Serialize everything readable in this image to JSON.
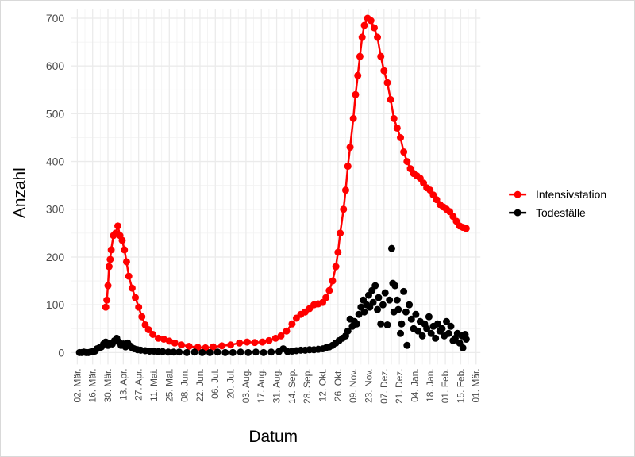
{
  "chart_data": {
    "type": "line",
    "xlabel": "Datum",
    "ylabel": "Anzahl",
    "x_range": [
      "2020-02-25",
      "2021-03-05"
    ],
    "ylim": [
      -25,
      720
    ],
    "y_ticks": [
      0,
      100,
      200,
      300,
      400,
      500,
      600,
      700
    ],
    "x_ticks": [
      {
        "date": "2020-03-02",
        "label": "02. Mär."
      },
      {
        "date": "2020-03-16",
        "label": "16. Mär."
      },
      {
        "date": "2020-03-30",
        "label": "30. Mär."
      },
      {
        "date": "2020-04-13",
        "label": "13. Apr."
      },
      {
        "date": "2020-04-27",
        "label": "27. Apr."
      },
      {
        "date": "2020-05-11",
        "label": "11. Mai."
      },
      {
        "date": "2020-05-25",
        "label": "25. Mai."
      },
      {
        "date": "2020-06-08",
        "label": "08. Jun."
      },
      {
        "date": "2020-06-22",
        "label": "22. Jun."
      },
      {
        "date": "2020-07-06",
        "label": "06. Jul."
      },
      {
        "date": "2020-07-20",
        "label": "20. Jul."
      },
      {
        "date": "2020-08-03",
        "label": "03. Aug."
      },
      {
        "date": "2020-08-17",
        "label": "17. Aug."
      },
      {
        "date": "2020-08-31",
        "label": "31. Aug."
      },
      {
        "date": "2020-09-14",
        "label": "14. Sep."
      },
      {
        "date": "2020-09-28",
        "label": "28. Sep."
      },
      {
        "date": "2020-10-12",
        "label": "12. Okt."
      },
      {
        "date": "2020-10-26",
        "label": "26. Okt."
      },
      {
        "date": "2020-11-09",
        "label": "09. Nov."
      },
      {
        "date": "2020-11-23",
        "label": "23. Nov."
      },
      {
        "date": "2020-12-07",
        "label": "07. Dez."
      },
      {
        "date": "2020-12-21",
        "label": "21. Dez."
      },
      {
        "date": "2021-01-04",
        "label": "04. Jan."
      },
      {
        "date": "2021-01-18",
        "label": "18. Jan."
      },
      {
        "date": "2021-02-01",
        "label": "01. Feb."
      },
      {
        "date": "2021-02-15",
        "label": "15. Feb."
      },
      {
        "date": "2021-03-01",
        "label": "01. Mär."
      }
    ],
    "grid": true,
    "legend_position": "right",
    "series": [
      {
        "name": "Intensivstation",
        "color": "#ff0000",
        "line": true,
        "points": [
          [
            "2020-03-28",
            95
          ],
          [
            "2020-03-29",
            110
          ],
          [
            "2020-03-30",
            140
          ],
          [
            "2020-03-31",
            180
          ],
          [
            "2020-04-01",
            195
          ],
          [
            "2020-04-02",
            215
          ],
          [
            "2020-04-04",
            245
          ],
          [
            "2020-04-06",
            250
          ],
          [
            "2020-04-08",
            265
          ],
          [
            "2020-04-10",
            245
          ],
          [
            "2020-04-12",
            235
          ],
          [
            "2020-04-14",
            215
          ],
          [
            "2020-04-16",
            190
          ],
          [
            "2020-04-18",
            160
          ],
          [
            "2020-04-21",
            135
          ],
          [
            "2020-04-24",
            115
          ],
          [
            "2020-04-27",
            95
          ],
          [
            "2020-04-30",
            75
          ],
          [
            "2020-05-03",
            58
          ],
          [
            "2020-05-06",
            48
          ],
          [
            "2020-05-10",
            38
          ],
          [
            "2020-05-15",
            30
          ],
          [
            "2020-05-20",
            28
          ],
          [
            "2020-05-25",
            24
          ],
          [
            "2020-05-30",
            20
          ],
          [
            "2020-06-05",
            16
          ],
          [
            "2020-06-12",
            13
          ],
          [
            "2020-06-20",
            11
          ],
          [
            "2020-06-27",
            10
          ],
          [
            "2020-07-04",
            12
          ],
          [
            "2020-07-12",
            14
          ],
          [
            "2020-07-20",
            16
          ],
          [
            "2020-07-28",
            20
          ],
          [
            "2020-08-04",
            22
          ],
          [
            "2020-08-11",
            21
          ],
          [
            "2020-08-18",
            22
          ],
          [
            "2020-08-24",
            25
          ],
          [
            "2020-08-30",
            30
          ],
          [
            "2020-09-04",
            35
          ],
          [
            "2020-09-09",
            45
          ],
          [
            "2020-09-14",
            60
          ],
          [
            "2020-09-18",
            72
          ],
          [
            "2020-09-22",
            80
          ],
          [
            "2020-09-26",
            85
          ],
          [
            "2020-09-30",
            92
          ],
          [
            "2020-10-04",
            100
          ],
          [
            "2020-10-08",
            102
          ],
          [
            "2020-10-12",
            105
          ],
          [
            "2020-10-15",
            115
          ],
          [
            "2020-10-18",
            130
          ],
          [
            "2020-10-21",
            150
          ],
          [
            "2020-10-24",
            180
          ],
          [
            "2020-10-26",
            210
          ],
          [
            "2020-10-28",
            250
          ],
          [
            "2020-10-31",
            300
          ],
          [
            "2020-11-02",
            340
          ],
          [
            "2020-11-04",
            390
          ],
          [
            "2020-11-06",
            430
          ],
          [
            "2020-11-09",
            490
          ],
          [
            "2020-11-11",
            540
          ],
          [
            "2020-11-13",
            580
          ],
          [
            "2020-11-15",
            620
          ],
          [
            "2020-11-17",
            660
          ],
          [
            "2020-11-19",
            685
          ],
          [
            "2020-11-22",
            700
          ],
          [
            "2020-11-25",
            695
          ],
          [
            "2020-11-28",
            680
          ],
          [
            "2020-12-01",
            660
          ],
          [
            "2020-12-04",
            620
          ],
          [
            "2020-12-07",
            590
          ],
          [
            "2020-12-10",
            565
          ],
          [
            "2020-12-13",
            530
          ],
          [
            "2020-12-16",
            490
          ],
          [
            "2020-12-19",
            470
          ],
          [
            "2020-12-22",
            450
          ],
          [
            "2020-12-25",
            420
          ],
          [
            "2020-12-28",
            400
          ],
          [
            "2020-12-31",
            385
          ],
          [
            "2021-01-03",
            375
          ],
          [
            "2021-01-06",
            370
          ],
          [
            "2021-01-09",
            365
          ],
          [
            "2021-01-12",
            355
          ],
          [
            "2021-01-15",
            345
          ],
          [
            "2021-01-18",
            340
          ],
          [
            "2021-01-21",
            330
          ],
          [
            "2021-01-24",
            320
          ],
          [
            "2021-01-27",
            310
          ],
          [
            "2021-01-30",
            305
          ],
          [
            "2021-02-02",
            300
          ],
          [
            "2021-02-05",
            295
          ],
          [
            "2021-02-08",
            285
          ],
          [
            "2021-02-11",
            275
          ],
          [
            "2021-02-14",
            265
          ],
          [
            "2021-02-17",
            262
          ],
          [
            "2021-02-20",
            260
          ]
        ]
      },
      {
        "name": "Todesfälle",
        "color": "#000000",
        "line": false,
        "points": [
          [
            "2020-03-04",
            0
          ],
          [
            "2020-03-06",
            0
          ],
          [
            "2020-03-08",
            1
          ],
          [
            "2020-03-10",
            0
          ],
          [
            "2020-03-12",
            0
          ],
          [
            "2020-03-14",
            1
          ],
          [
            "2020-03-16",
            2
          ],
          [
            "2020-03-18",
            3
          ],
          [
            "2020-03-20",
            8
          ],
          [
            "2020-03-22",
            10
          ],
          [
            "2020-03-24",
            12
          ],
          [
            "2020-03-26",
            18
          ],
          [
            "2020-03-28",
            22
          ],
          [
            "2020-03-30",
            15
          ],
          [
            "2020-04-01",
            20
          ],
          [
            "2020-04-03",
            18
          ],
          [
            "2020-04-05",
            25
          ],
          [
            "2020-04-07",
            30
          ],
          [
            "2020-04-09",
            22
          ],
          [
            "2020-04-11",
            15
          ],
          [
            "2020-04-13",
            18
          ],
          [
            "2020-04-15",
            12
          ],
          [
            "2020-04-17",
            20
          ],
          [
            "2020-04-19",
            14
          ],
          [
            "2020-04-21",
            10
          ],
          [
            "2020-04-23",
            8
          ],
          [
            "2020-04-26",
            6
          ],
          [
            "2020-04-29",
            5
          ],
          [
            "2020-05-03",
            4
          ],
          [
            "2020-05-07",
            3
          ],
          [
            "2020-05-11",
            3
          ],
          [
            "2020-05-15",
            2
          ],
          [
            "2020-05-19",
            2
          ],
          [
            "2020-05-24",
            1
          ],
          [
            "2020-05-29",
            1
          ],
          [
            "2020-06-03",
            1
          ],
          [
            "2020-06-10",
            0
          ],
          [
            "2020-06-17",
            1
          ],
          [
            "2020-06-24",
            0
          ],
          [
            "2020-07-01",
            0
          ],
          [
            "2020-07-08",
            1
          ],
          [
            "2020-07-15",
            0
          ],
          [
            "2020-07-22",
            0
          ],
          [
            "2020-07-29",
            1
          ],
          [
            "2020-08-05",
            0
          ],
          [
            "2020-08-12",
            1
          ],
          [
            "2020-08-19",
            0
          ],
          [
            "2020-08-26",
            1
          ],
          [
            "2020-09-02",
            2
          ],
          [
            "2020-09-06",
            8
          ],
          [
            "2020-09-10",
            2
          ],
          [
            "2020-09-14",
            3
          ],
          [
            "2020-09-18",
            4
          ],
          [
            "2020-09-22",
            5
          ],
          [
            "2020-09-26",
            5
          ],
          [
            "2020-09-30",
            6
          ],
          [
            "2020-10-04",
            6
          ],
          [
            "2020-10-08",
            7
          ],
          [
            "2020-10-12",
            8
          ],
          [
            "2020-10-15",
            10
          ],
          [
            "2020-10-18",
            12
          ],
          [
            "2020-10-21",
            15
          ],
          [
            "2020-10-24",
            20
          ],
          [
            "2020-10-27",
            25
          ],
          [
            "2020-10-30",
            30
          ],
          [
            "2020-11-02",
            35
          ],
          [
            "2020-11-04",
            45
          ],
          [
            "2020-11-06",
            70
          ],
          [
            "2020-11-08",
            55
          ],
          [
            "2020-11-10",
            65
          ],
          [
            "2020-11-12",
            60
          ],
          [
            "2020-11-14",
            80
          ],
          [
            "2020-11-16",
            95
          ],
          [
            "2020-11-18",
            110
          ],
          [
            "2020-11-19",
            85
          ],
          [
            "2020-11-21",
            100
          ],
          [
            "2020-11-23",
            120
          ],
          [
            "2020-11-24",
            95
          ],
          [
            "2020-11-26",
            130
          ],
          [
            "2020-11-27",
            105
          ],
          [
            "2020-11-29",
            140
          ],
          [
            "2020-12-01",
            90
          ],
          [
            "2020-12-02",
            115
          ],
          [
            "2020-12-04",
            60
          ],
          [
            "2020-12-06",
            100
          ],
          [
            "2020-12-08",
            125
          ],
          [
            "2020-12-10",
            58
          ],
          [
            "2020-12-12",
            110
          ],
          [
            "2020-12-14",
            218
          ],
          [
            "2020-12-15",
            145
          ],
          [
            "2020-12-16",
            85
          ],
          [
            "2020-12-17",
            140
          ],
          [
            "2020-12-19",
            110
          ],
          [
            "2020-12-20",
            90
          ],
          [
            "2020-12-22",
            40
          ],
          [
            "2020-12-23",
            60
          ],
          [
            "2020-12-25",
            128
          ],
          [
            "2020-12-27",
            85
          ],
          [
            "2020-12-28",
            15
          ],
          [
            "2020-12-30",
            100
          ],
          [
            "2021-01-01",
            70
          ],
          [
            "2021-01-03",
            50
          ],
          [
            "2021-01-05",
            80
          ],
          [
            "2021-01-07",
            45
          ],
          [
            "2021-01-09",
            65
          ],
          [
            "2021-01-11",
            35
          ],
          [
            "2021-01-13",
            60
          ],
          [
            "2021-01-15",
            50
          ],
          [
            "2021-01-17",
            75
          ],
          [
            "2021-01-19",
            40
          ],
          [
            "2021-01-21",
            55
          ],
          [
            "2021-01-23",
            30
          ],
          [
            "2021-01-25",
            60
          ],
          [
            "2021-01-27",
            45
          ],
          [
            "2021-01-29",
            50
          ],
          [
            "2021-01-31",
            35
          ],
          [
            "2021-02-02",
            65
          ],
          [
            "2021-02-04",
            40
          ],
          [
            "2021-02-06",
            55
          ],
          [
            "2021-02-08",
            25
          ],
          [
            "2021-02-10",
            30
          ],
          [
            "2021-02-12",
            40
          ],
          [
            "2021-02-14",
            20
          ],
          [
            "2021-02-16",
            35
          ],
          [
            "2021-02-17",
            10
          ],
          [
            "2021-02-19",
            38
          ],
          [
            "2021-02-20",
            28
          ]
        ]
      }
    ]
  }
}
